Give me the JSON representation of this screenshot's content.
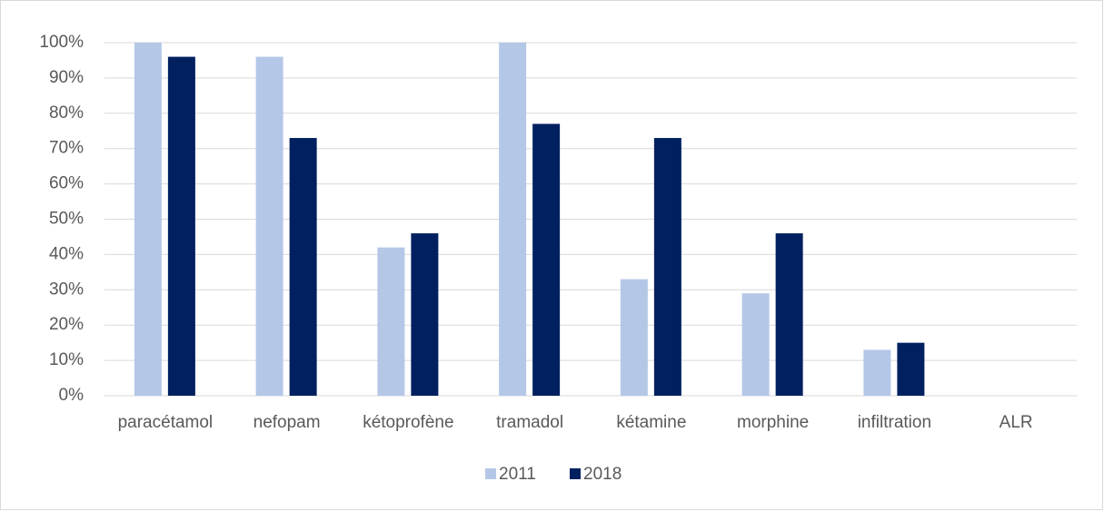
{
  "chart_data": {
    "type": "bar",
    "categories": [
      "paracétamol",
      "nefopam",
      "kétoprofène",
      "tramadol",
      "kétamine",
      "morphine",
      "infiltration",
      "ALR"
    ],
    "series": [
      {
        "name": "2011",
        "color": "#b4c7e7",
        "values": [
          100,
          96,
          42,
          100,
          33,
          29,
          13,
          0
        ]
      },
      {
        "name": "2018",
        "color": "#002060",
        "values": [
          96,
          73,
          46,
          77,
          73,
          46,
          15,
          0
        ]
      }
    ],
    "ylim": [
      0,
      100
    ],
    "yticks": [
      {
        "value": 0,
        "label": "0%"
      },
      {
        "value": 10,
        "label": "10%"
      },
      {
        "value": 20,
        "label": "20%"
      },
      {
        "value": 30,
        "label": "30%"
      },
      {
        "value": 40,
        "label": "40%"
      },
      {
        "value": 50,
        "label": "50%"
      },
      {
        "value": 60,
        "label": "60%"
      },
      {
        "value": 70,
        "label": "70%"
      },
      {
        "value": 80,
        "label": "80%"
      },
      {
        "value": 90,
        "label": "90%"
      },
      {
        "value": 100,
        "label": "100%"
      }
    ],
    "grid": true,
    "legend": "bottom"
  }
}
